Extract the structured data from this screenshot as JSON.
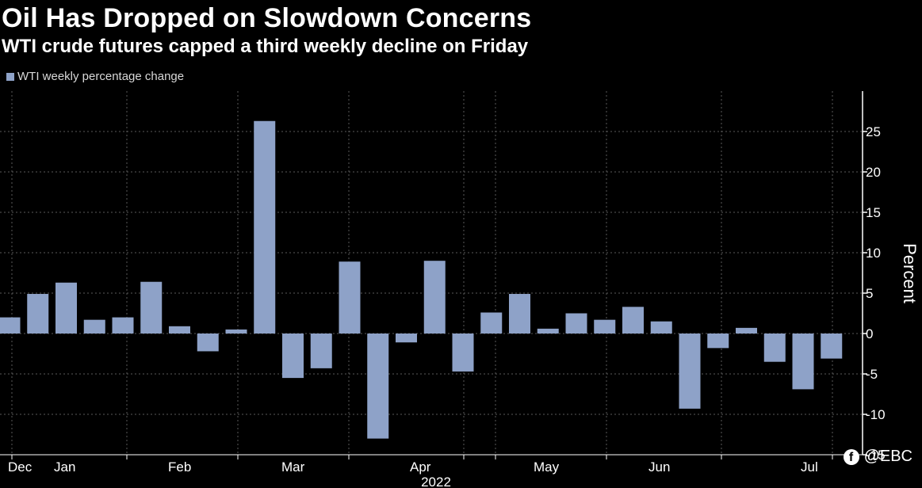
{
  "header": {
    "title": "Oil Has Dropped on Slowdown Concerns",
    "subtitle": "WTI crude futures capped a third weekly decline on Friday"
  },
  "watermark": {
    "icon": "facebook-icon",
    "text": "@EBC"
  },
  "colors": {
    "background": "#000000",
    "bar": "#8ea2c8",
    "grid": "#5a5a5a",
    "text": "#ffffff"
  },
  "chart_data": {
    "type": "bar",
    "title": "Oil Has Dropped on Slowdown Concerns",
    "subtitle": "WTI crude futures capped a third weekly decline on Friday",
    "legend": [
      "WTI weekly percentage change"
    ],
    "legend_position": "top-left",
    "ylabel": "Percent",
    "y_axis_side": "right",
    "ylim": [
      -15,
      30
    ],
    "yticks": [
      -15,
      -10,
      -5,
      0,
      5,
      10,
      15,
      20,
      25
    ],
    "ytick_labels": [
      "-15",
      "-10",
      "-5",
      "0",
      "5",
      "10",
      "15",
      "20",
      "25"
    ],
    "grid": true,
    "grid_style": "dotted",
    "x_month_labels": [
      "Dec",
      "Jan",
      "Feb",
      "Mar",
      "Apr",
      "May",
      "Jun",
      "Jul"
    ],
    "x_year_label": "2022",
    "series": [
      {
        "name": "WTI weekly percentage change",
        "values": [
          2.0,
          4.9,
          6.3,
          1.7,
          2.0,
          6.4,
          0.9,
          -2.2,
          0.5,
          26.3,
          -5.5,
          -4.3,
          8.9,
          -13.0,
          -1.1,
          9.0,
          -4.7,
          2.6,
          4.9,
          0.6,
          2.5,
          1.7,
          3.3,
          1.5,
          -9.3,
          -1.8,
          0.7,
          -3.5,
          -6.9,
          -3.1
        ]
      }
    ]
  }
}
